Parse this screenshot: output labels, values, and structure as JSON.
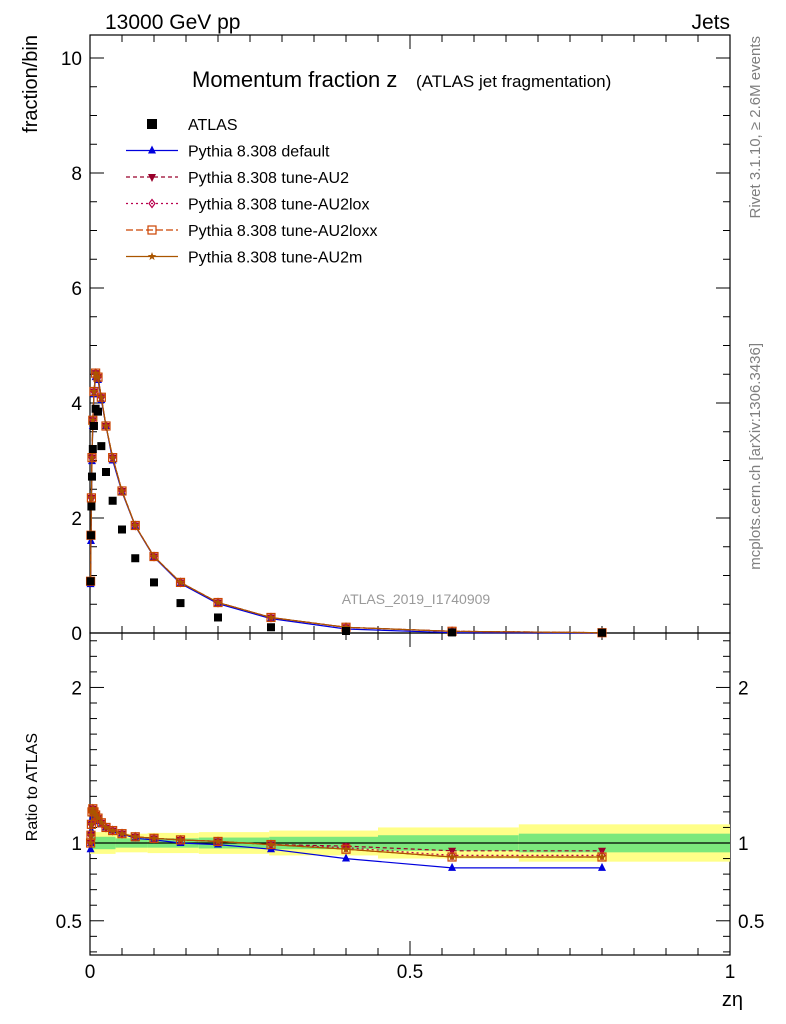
{
  "header": {
    "left": "13000 GeV pp",
    "right": "Jets"
  },
  "side_labels": {
    "rivet": "Rivet 3.1.10, ≥ 2.6M events",
    "source": "mcplots.cern.ch [arXiv:1306.3436]"
  },
  "watermark": "ATLAS_2019_I1740909",
  "colors": {
    "atlas": "#000000",
    "default": "#0000dd",
    "AU2": "#99002a",
    "AU2lox": "#b8004d",
    "AU2loxx": "#cc4400",
    "AU2m": "#aa5500",
    "band_inner": "#7ce87c",
    "band_outer": "#ffff88"
  },
  "chart_data": [
    {
      "type": "line",
      "title": "Momentum fraction z",
      "subtitle": "(ATLAS jet fragmentation)",
      "ylabel": "fraction/bin",
      "xlabel": "",
      "xlim": [
        0,
        1
      ],
      "ylim": [
        0,
        10.4
      ],
      "y_ticks": [
        "0",
        "2",
        "4",
        "6",
        "8",
        "10"
      ],
      "x": [
        0.0009,
        0.0015,
        0.0022,
        0.0031,
        0.0044,
        0.0062,
        0.0088,
        0.0125,
        0.0177,
        0.025,
        0.0354,
        0.05,
        0.0707,
        0.1,
        0.1414,
        0.2,
        0.2828,
        0.4,
        0.5657,
        0.8
      ],
      "legend_position": "top-left",
      "series": [
        {
          "name": "ATLAS",
          "key": "atlas",
          "marker": "square",
          "dash": "",
          "values": [
            0.9,
            1.7,
            2.2,
            2.72,
            3.2,
            3.6,
            3.9,
            3.85,
            3.25,
            2.8,
            2.3,
            1.8,
            1.3,
            0.88,
            0.52,
            0.27,
            0.1,
            0.035,
            0.01,
            0.005
          ]
        },
        {
          "name": "Pythia 8.308 default",
          "key": "default",
          "marker": "triangle-up",
          "dash": "",
          "values": [
            0.85,
            1.6,
            2.2,
            2.99,
            3.6,
            4.15,
            4.45,
            4.4,
            4.05,
            3.6,
            3.0,
            2.45,
            1.86,
            1.32,
            0.86,
            0.51,
            0.25,
            0.07,
            0.005,
            0.0
          ]
        },
        {
          "name": "Pythia 8.308 tune-AU2",
          "key": "AU2",
          "marker": "triangle-down",
          "dash": "4,3",
          "values": [
            0.9,
            1.7,
            2.35,
            3.05,
            3.7,
            4.2,
            4.52,
            4.45,
            4.1,
            3.6,
            3.05,
            2.47,
            1.87,
            1.33,
            0.88,
            0.53,
            0.27,
            0.1,
            0.03,
            0.005
          ]
        },
        {
          "name": "Pythia 8.308 tune-AU2lox",
          "key": "AU2lox",
          "marker": "diamond-open",
          "dash": "2,3",
          "values": [
            0.9,
            1.7,
            2.35,
            3.05,
            3.7,
            4.2,
            4.52,
            4.45,
            4.1,
            3.6,
            3.05,
            2.47,
            1.87,
            1.33,
            0.88,
            0.53,
            0.27,
            0.1,
            0.03,
            0.005
          ]
        },
        {
          "name": "Pythia 8.308 tune-AU2loxx",
          "key": "AU2loxx",
          "marker": "square-open",
          "dash": "7,3",
          "values": [
            0.9,
            1.7,
            2.35,
            3.05,
            3.7,
            4.2,
            4.52,
            4.45,
            4.1,
            3.6,
            3.05,
            2.47,
            1.87,
            1.33,
            0.88,
            0.53,
            0.27,
            0.1,
            0.03,
            0.005
          ]
        },
        {
          "name": "Pythia 8.308 tune-AU2m",
          "key": "AU2m",
          "marker": "star",
          "dash": "",
          "values": [
            0.9,
            1.7,
            2.35,
            3.05,
            3.7,
            4.2,
            4.52,
            4.45,
            4.1,
            3.6,
            3.05,
            2.47,
            1.87,
            1.33,
            0.88,
            0.53,
            0.27,
            0.1,
            0.03,
            0.005
          ]
        }
      ]
    },
    {
      "type": "line",
      "title": "",
      "ylabel": "Ratio to ATLAS",
      "xlabel": "zη",
      "xlim": [
        0,
        1
      ],
      "ylim": [
        0.28,
        2.35
      ],
      "y_ticks": [
        "0.5",
        "1",
        "2"
      ],
      "x_ticks": [
        "0",
        "0.5",
        "1"
      ],
      "x": [
        0.0009,
        0.0015,
        0.0022,
        0.0031,
        0.0044,
        0.0062,
        0.0088,
        0.0125,
        0.0177,
        0.025,
        0.0354,
        0.05,
        0.0707,
        0.1,
        0.1414,
        0.2,
        0.2828,
        0.4,
        0.5657,
        0.8
      ],
      "band_edges": [
        0,
        0.04,
        0.09,
        0.17,
        0.28,
        0.45,
        0.67,
        1.0
      ],
      "band_inner": [
        0.04,
        0.03,
        0.03,
        0.035,
        0.04,
        0.05,
        0.06
      ],
      "band_outer": [
        0.07,
        0.06,
        0.065,
        0.07,
        0.08,
        0.1,
        0.12
      ],
      "series": [
        {
          "name": "Pythia 8.308 default",
          "key": "default",
          "marker": "triangle-up",
          "dash": "",
          "values": [
            0.96,
            1.0,
            1.08,
            1.15,
            1.17,
            1.16,
            1.15,
            1.14,
            1.12,
            1.1,
            1.08,
            1.06,
            1.03,
            1.02,
            1.0,
            0.99,
            0.96,
            0.9,
            0.84,
            0.84
          ]
        },
        {
          "name": "Pythia 8.308 tune-AU2",
          "key": "AU2",
          "marker": "triangle-down",
          "dash": "4,3",
          "values": [
            1.0,
            1.05,
            1.12,
            1.2,
            1.22,
            1.2,
            1.18,
            1.16,
            1.13,
            1.1,
            1.08,
            1.06,
            1.04,
            1.03,
            1.02,
            1.01,
            0.99,
            0.98,
            0.95,
            0.95
          ]
        },
        {
          "name": "Pythia 8.308 tune-AU2lox",
          "key": "AU2lox",
          "marker": "diamond-open",
          "dash": "2,3",
          "values": [
            1.0,
            1.05,
            1.12,
            1.2,
            1.22,
            1.2,
            1.18,
            1.16,
            1.13,
            1.1,
            1.08,
            1.06,
            1.04,
            1.03,
            1.02,
            1.01,
            0.99,
            0.97,
            0.92,
            0.92
          ]
        },
        {
          "name": "Pythia 8.308 tune-AU2loxx",
          "key": "AU2loxx",
          "marker": "square-open",
          "dash": "7,3",
          "values": [
            1.0,
            1.05,
            1.12,
            1.2,
            1.22,
            1.2,
            1.18,
            1.16,
            1.13,
            1.1,
            1.08,
            1.06,
            1.04,
            1.03,
            1.02,
            1.01,
            0.99,
            0.96,
            0.91,
            0.91
          ]
        },
        {
          "name": "Pythia 8.308 tune-AU2m",
          "key": "AU2m",
          "marker": "star",
          "dash": "",
          "values": [
            1.0,
            1.05,
            1.12,
            1.2,
            1.22,
            1.2,
            1.18,
            1.16,
            1.13,
            1.1,
            1.08,
            1.06,
            1.04,
            1.03,
            1.02,
            1.01,
            0.99,
            0.96,
            0.91,
            0.91
          ]
        }
      ]
    }
  ]
}
